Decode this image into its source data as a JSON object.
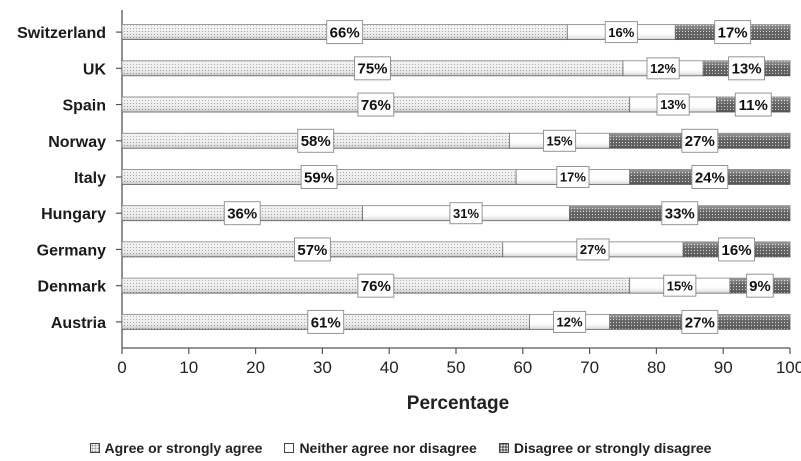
{
  "chart_data": {
    "type": "bar",
    "orientation": "horizontal",
    "stacked": true,
    "categories": [
      "Switzerland",
      "UK",
      "Spain",
      "Norway",
      "Italy",
      "Hungary",
      "Germany",
      "Denmark",
      "Austria"
    ],
    "series": [
      {
        "name": "Agree or strongly agree",
        "values": [
          66,
          75,
          76,
          58,
          59,
          36,
          57,
          76,
          61
        ],
        "labels": [
          "66%",
          "75%",
          "76%",
          "58%",
          "59%",
          "36%",
          "57%",
          "76%",
          "61%"
        ]
      },
      {
        "name": "Neither agree nor disagree",
        "values": [
          16,
          12,
          13,
          15,
          17,
          31,
          27,
          15,
          12
        ],
        "labels": [
          "16%",
          "12%",
          "13%",
          "15%",
          "17%",
          "31%",
          "27%",
          "15%",
          "12%"
        ]
      },
      {
        "name": "Disagree or strongly disagree",
        "values": [
          17,
          13,
          11,
          27,
          24,
          33,
          16,
          9,
          27
        ],
        "labels": [
          "17%",
          "13%",
          "11%",
          "27%",
          "24%",
          "33%",
          "16%",
          "9%",
          "27%"
        ]
      }
    ],
    "xlabel": "Percentage",
    "xlim": [
      0,
      100
    ],
    "xticks": [
      "0",
      "10",
      "20",
      "30",
      "40",
      "50",
      "60",
      "70",
      "80",
      "90",
      "100"
    ],
    "legend_position": "bottom",
    "grid": false
  }
}
